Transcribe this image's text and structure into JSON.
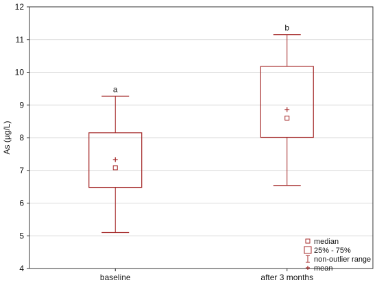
{
  "chart_data": {
    "type": "box",
    "ylabel": "As (µg/L)",
    "xlabel": "",
    "ylim": [
      4,
      12
    ],
    "yticks": [
      "4",
      "5",
      "6",
      "7",
      "8",
      "9",
      "10",
      "11",
      "12"
    ],
    "grid": true,
    "categories": [
      "baseline",
      "after 3 months"
    ],
    "boxes": [
      {
        "category": "baseline",
        "whisker_low": 5.1,
        "q1": 6.48,
        "median": 7.08,
        "mean": 7.33,
        "q3": 8.15,
        "whisker_high": 9.27,
        "significance": "a"
      },
      {
        "category": "after 3 months",
        "whisker_low": 6.54,
        "q1": 8.01,
        "median": 8.6,
        "mean": 8.86,
        "q3": 10.18,
        "whisker_high": 11.15,
        "significance": "b"
      }
    ],
    "legend": {
      "position": "bottom-right",
      "items": [
        "median",
        "25% - 75%",
        "non-outlier range",
        "mean"
      ]
    },
    "color": "#a52a2a"
  }
}
